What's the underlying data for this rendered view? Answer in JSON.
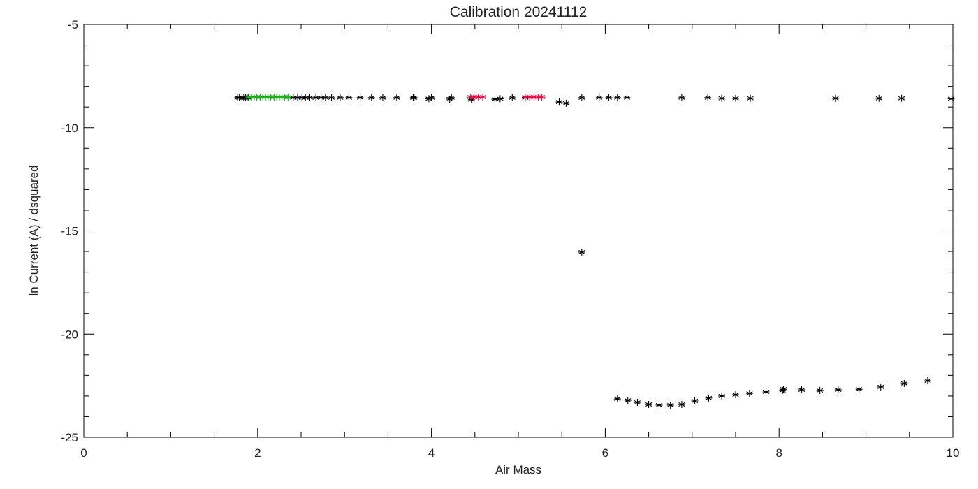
{
  "chart_data": {
    "type": "scatter",
    "title": "Calibration 20241112",
    "x_label": "Air Mass",
    "y_label": "ln Current (A) / dsquared",
    "xlim": [
      0,
      10
    ],
    "ylim": [
      -25,
      -5
    ],
    "xticks": [
      0,
      2,
      4,
      6,
      8,
      10
    ],
    "yticks": [
      -25,
      -20,
      -15,
      -10,
      -5
    ],
    "marker": "asterisk",
    "series": [
      {
        "color": "#000000",
        "x": [
          1.77,
          1.79,
          1.82,
          1.84,
          1.86,
          1.89,
          2.41,
          2.46,
          2.51,
          2.55,
          2.6,
          2.67,
          2.73,
          2.78,
          2.85,
          2.95,
          3.05,
          3.18,
          3.31,
          3.44,
          3.6,
          3.79,
          3.8,
          3.97,
          4.0,
          4.21,
          4.23,
          4.46,
          4.73,
          4.79,
          4.93,
          5.08,
          5.47,
          5.55,
          5.73,
          5.93,
          6.04,
          6.14,
          6.25,
          6.88,
          7.18,
          7.34,
          7.5,
          7.67,
          8.65,
          9.15,
          9.41,
          9.98,
          5.73,
          6.14,
          6.26,
          6.37,
          6.5,
          6.62,
          6.75,
          6.88,
          7.03,
          7.19,
          7.34,
          7.5,
          7.66,
          7.85,
          8.04,
          8.05,
          8.26,
          8.47,
          8.68,
          8.92,
          9.17,
          9.44,
          9.71
        ],
        "y": [
          -8.55,
          -8.55,
          -8.55,
          -8.55,
          -8.55,
          -8.55,
          -8.55,
          -8.55,
          -8.55,
          -8.55,
          -8.55,
          -8.55,
          -8.55,
          -8.55,
          -8.55,
          -8.55,
          -8.55,
          -8.55,
          -8.55,
          -8.55,
          -8.55,
          -8.55,
          -8.55,
          -8.6,
          -8.55,
          -8.62,
          -8.55,
          -8.65,
          -8.62,
          -8.6,
          -8.55,
          -8.55,
          -8.76,
          -8.82,
          -8.55,
          -8.55,
          -8.55,
          -8.55,
          -8.55,
          -8.55,
          -8.55,
          -8.58,
          -8.58,
          -8.58,
          -8.58,
          -8.58,
          -8.58,
          -8.6,
          -16.03,
          -23.14,
          -23.21,
          -23.31,
          -23.41,
          -23.44,
          -23.44,
          -23.41,
          -23.24,
          -23.1,
          -23.0,
          -22.94,
          -22.87,
          -22.8,
          -22.73,
          -22.67,
          -22.7,
          -22.73,
          -22.7,
          -22.67,
          -22.56,
          -22.39,
          -22.26
        ]
      },
      {
        "color": "#22aa22",
        "x": [
          1.9,
          1.93,
          1.96,
          1.99,
          2.03,
          2.06,
          2.09,
          2.12,
          2.15,
          2.19,
          2.22,
          2.25,
          2.28,
          2.31,
          2.35
        ],
        "y": [
          -8.52,
          -8.52,
          -8.52,
          -8.52,
          -8.52,
          -8.52,
          -8.52,
          -8.52,
          -8.52,
          -8.52,
          -8.52,
          -8.52,
          -8.52,
          -8.52,
          -8.52
        ]
      },
      {
        "color": "#dd1144",
        "x": [
          4.45,
          4.49,
          4.54,
          4.59,
          5.08,
          5.13,
          5.18,
          5.23,
          5.27
        ],
        "y": [
          -8.52,
          -8.52,
          -8.52,
          -8.52,
          -8.52,
          -8.52,
          -8.52,
          -8.52,
          -8.52
        ]
      }
    ]
  }
}
